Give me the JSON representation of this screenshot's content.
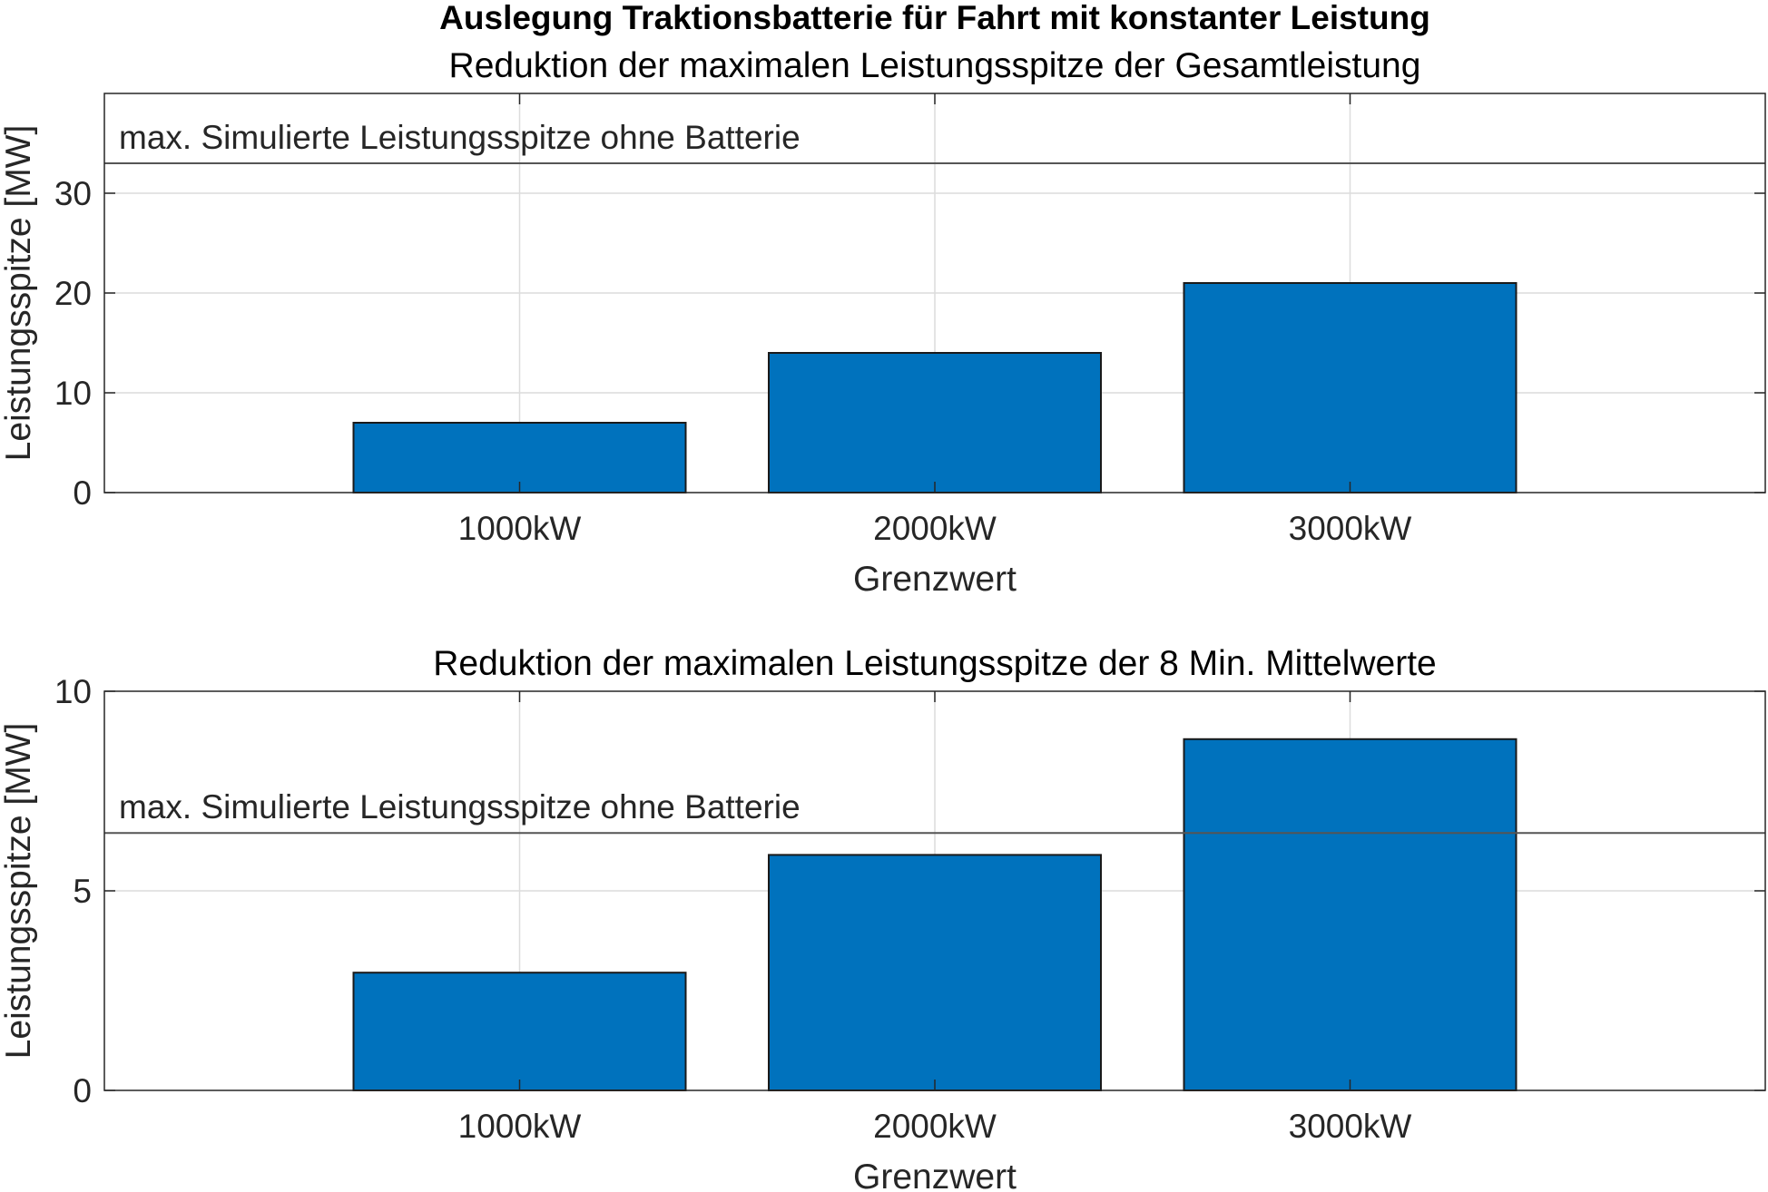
{
  "figure": {
    "suptitle": "Auslegung Traktionsbatterie für Fahrt mit konstanter Leistung"
  },
  "chart_data": [
    {
      "type": "bar",
      "title": "Reduktion der maximalen Leistungsspitze der Gesamtleistung",
      "xlabel": "Grenzwert",
      "ylabel": "Leistungsspitze [MW]",
      "categories": [
        "1000kW",
        "2000kW",
        "3000kW"
      ],
      "values": [
        7,
        14,
        21
      ],
      "ylim": [
        0,
        40
      ],
      "yticks": [
        0,
        10,
        20,
        30
      ],
      "ytick_labels": [
        "0",
        "10",
        "20",
        "30"
      ],
      "xlim": [
        0,
        4
      ],
      "bar_color": "#0072BD",
      "grid": true,
      "reference_line": {
        "value": 33,
        "label": "max. Simulierte Leistungsspitze ohne Batterie"
      }
    },
    {
      "type": "bar",
      "title": "Reduktion der maximalen Leistungsspitze der 8 Min. Mittelwerte",
      "xlabel": "Grenzwert",
      "ylabel": "Leistungsspitze [MW]",
      "categories": [
        "1000kW",
        "2000kW",
        "3000kW"
      ],
      "values": [
        2.95,
        5.9,
        8.8
      ],
      "ylim": [
        0,
        10
      ],
      "yticks": [
        0,
        5,
        10
      ],
      "ytick_labels": [
        "0",
        "5",
        "10"
      ],
      "xlim": [
        0,
        4
      ],
      "bar_color": "#0072BD",
      "grid": true,
      "reference_line": {
        "value": 6.45,
        "label": "max. Simulierte Leistungsspitze ohne Batterie"
      }
    }
  ]
}
